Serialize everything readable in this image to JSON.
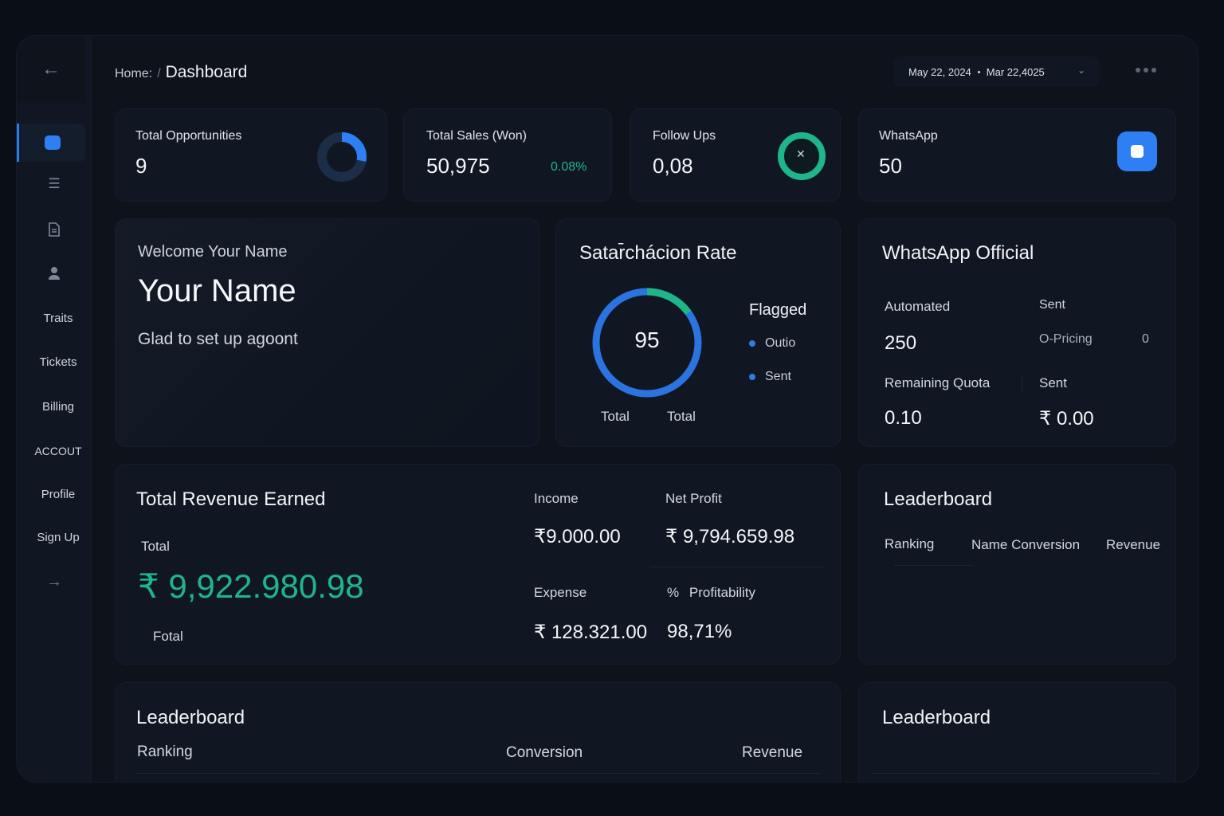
{
  "breadcrumb": {
    "home": "Home:",
    "separator": "/",
    "current": "Dashboard"
  },
  "date_range": {
    "start": "May 22, 2024",
    "end": "Mar 22,4025"
  },
  "sidebar": {
    "items": [
      {
        "label": "Traits"
      },
      {
        "label": "Tickets"
      },
      {
        "label": "Billing"
      },
      {
        "label": "ACCOUT"
      },
      {
        "label": "Profile"
      },
      {
        "label": "Sign Up"
      }
    ]
  },
  "stats": {
    "opportunities": {
      "label": "Total Opportunities",
      "value": "9"
    },
    "sales": {
      "label": "Total Sales (Won)",
      "value": "50,975",
      "change": "0.08%"
    },
    "followups": {
      "label": "Follow Ups",
      "value": "0,08"
    },
    "whatsapp": {
      "label": "WhatsApp",
      "value": "50"
    }
  },
  "welcome": {
    "greeting": "Welcome Your Name",
    "name": "Your Name",
    "message": "Glad to set up agoont"
  },
  "satisfaction": {
    "title": "Satar̄chácion Rate",
    "value": "95",
    "percent": 95,
    "legend_title": "Flagged",
    "legend": [
      "Outio",
      "Sent"
    ],
    "footer": [
      "Total",
      "Total"
    ]
  },
  "whatsapp_official": {
    "title": "WhatsApp Official",
    "automated_label": "Automated",
    "automated_value": "250",
    "sent_label": "Sent",
    "pricing_label": "O-Pricing",
    "pricing_value": "0",
    "quota_label": "Remaining Quota",
    "quota_value": "0.10",
    "sent2_label": "Sent",
    "sent2_value": "₹ 0.00"
  },
  "revenue": {
    "title": "Total Revenue Earned",
    "total_label": "Total",
    "total_value": "₹ 9,922.980.98",
    "footer": "Fotal",
    "income_label": "Income",
    "income_value": "₹9.000.00",
    "net_profit_label": "Net Profit",
    "net_profit_value": "₹ 9,794.659.98",
    "expense_label": "Expense",
    "expense_value": "₹ 128.321.00",
    "profitability_label": "Profitability",
    "profitability_icon": "%",
    "profitability_value": "98,71%"
  },
  "leaderboard_right": {
    "title": "Leaderboard",
    "columns": [
      "Ranking",
      "Name Conversion",
      "Revenue"
    ]
  },
  "leaderboard_bottom": {
    "title": "Leaderboard",
    "columns": [
      "Ranking",
      "Conversion",
      "Revenue"
    ]
  },
  "leaderboard_bottom_right": {
    "title": "Leaderboard"
  },
  "colors": {
    "accent": "#2d7ff3",
    "success": "#1fb58b",
    "background": "#0d121b",
    "card": "#111722"
  },
  "icons": [
    "arrow-left-icon",
    "menu-icon",
    "document-icon",
    "user-icon",
    "arrow-right-icon",
    "chevron-down-icon",
    "more-icon",
    "close-icon"
  ]
}
